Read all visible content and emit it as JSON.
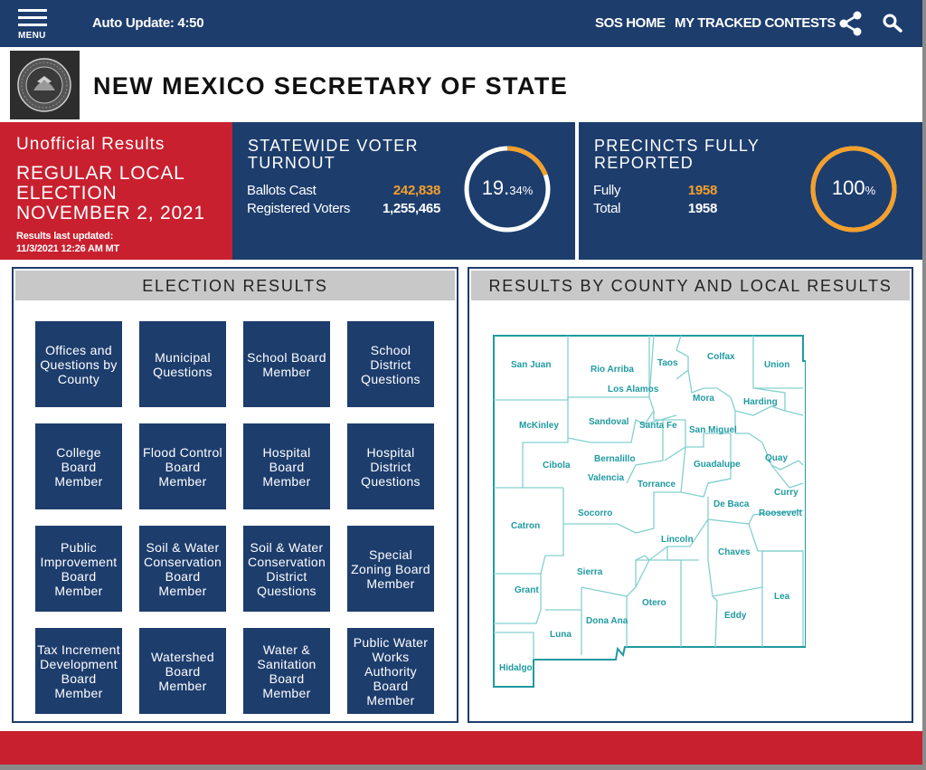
{
  "topbar": {
    "menu_label": "MENU",
    "auto_update": "Auto Update: 4:50",
    "links": [
      "SOS HOME",
      "MY TRACKED CONTESTS"
    ],
    "icons": [
      "share-icon",
      "search-icon"
    ]
  },
  "header": {
    "title": "NEW MEXICO SECRETARY OF STATE",
    "seal_icon": "state-seal-icon"
  },
  "status": {
    "unofficial": "Unofficial Results",
    "election": "REGULAR LOCAL ELECTION NOVEMBER 2, 2021",
    "last_updated_label": "Results last updated:",
    "last_updated_value": "11/3/2021 12:26 AM MT"
  },
  "turnout": {
    "title": "STATEWIDE VOTER TURNOUT",
    "ballots_label": "Ballots Cast",
    "ballots_value": "242,838",
    "registered_label": "Registered Voters",
    "registered_value": "1,255,465",
    "percent_main": "19.",
    "percent_decimal": "34%",
    "percent": 19.34
  },
  "precincts": {
    "title": "PRECINCTS FULLY REPORTED",
    "fully_label": "Fully",
    "fully_value": "1958",
    "total_label": "Total",
    "total_value": "1958",
    "percent_main": "100",
    "percent_decimal": "%",
    "percent": 100
  },
  "election_results": {
    "heading": "ELECTION RESULTS",
    "tiles": [
      "Offices and Questions by County",
      "Municipal Questions",
      "School Board Member",
      "School District Questions",
      "College Board Member",
      "Flood Control Board Member",
      "Hospital Board Member",
      "Hospital District Questions",
      "Public Improvement Board Member",
      "Soil & Water Conservation Board Member",
      "Soil & Water Conservation District Questions",
      "Special Zoning Board Member",
      "Tax Increment Development Board Member",
      "Watershed Board Member",
      "Water & Sanitation Board Member",
      "Public Water Works Authority Board Member"
    ]
  },
  "county_results": {
    "heading": "RESULTS BY COUNTY AND LOCAL RESULTS",
    "counties": [
      "San Juan",
      "Rio Arriba",
      "Taos",
      "Colfax",
      "Union",
      "Los Alamos",
      "Mora",
      "Harding",
      "McKinley",
      "Sandoval",
      "Santa Fe",
      "San Miguel",
      "Cibola",
      "Bernalillo",
      "Valencia",
      "Torrance",
      "Guadalupe",
      "Quay",
      "Curry",
      "De Baca",
      "Roosevelt",
      "Catron",
      "Socorro",
      "Lincoln",
      "Chaves",
      "Sierra",
      "Grant",
      "Otero",
      "Lea",
      "Eddy",
      "Luna",
      "Dona Ana",
      "Hidalgo"
    ]
  },
  "colors": {
    "navy": "#1d3d6d",
    "red": "#c8202f",
    "orange": "#f5a02a",
    "map_teal": "#1f9aa1"
  }
}
